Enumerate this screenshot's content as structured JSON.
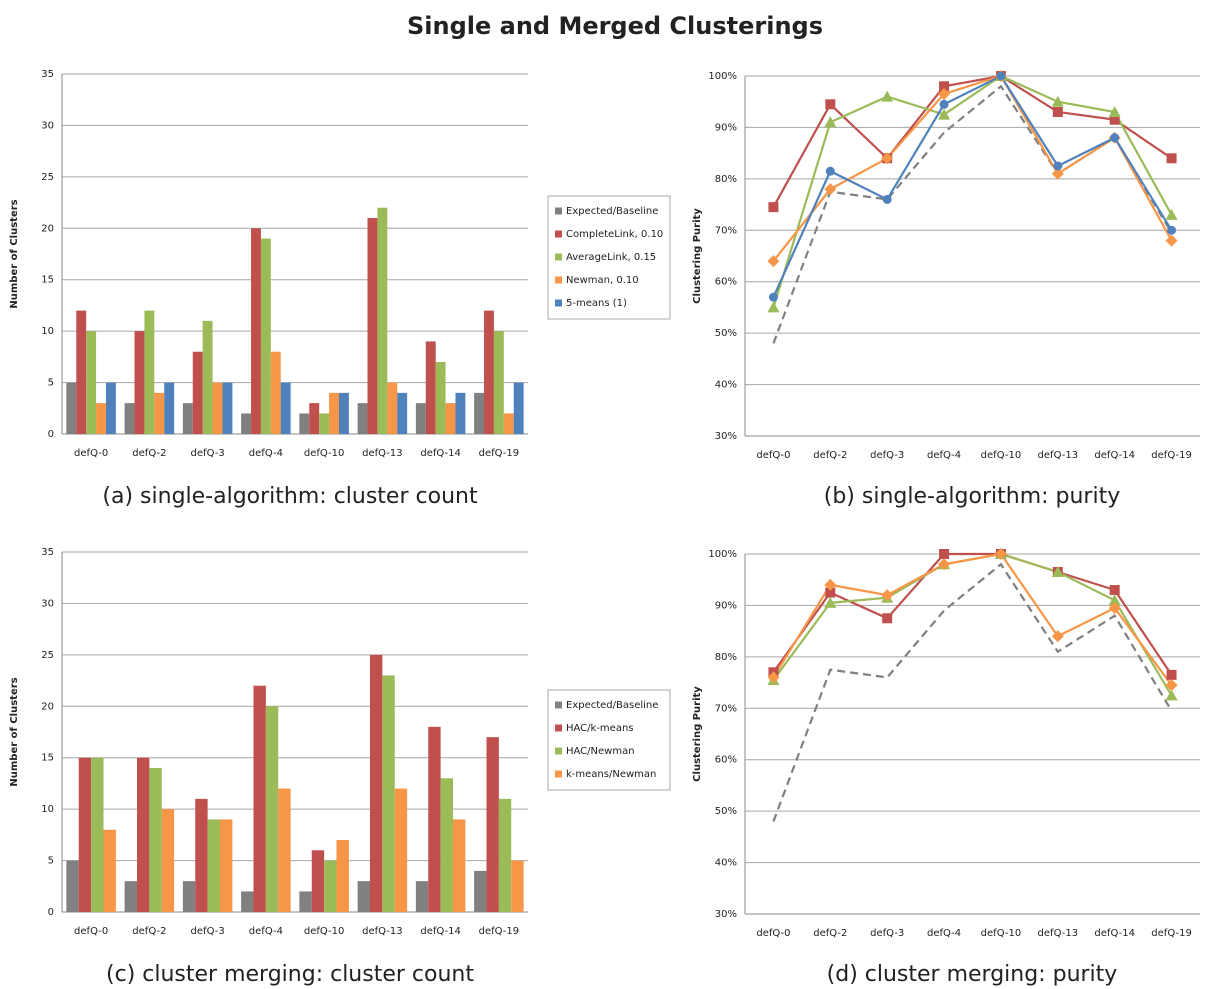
{
  "title": "Single and Merged Clusterings",
  "chart_data": [
    {
      "type": "bar",
      "caption": "(a) single-algorithm: cluster count",
      "ylabel": "Number of Clusters",
      "categories": [
        "defQ-0",
        "defQ-2",
        "defQ-3",
        "defQ-4",
        "defQ-10",
        "defQ-13",
        "defQ-14",
        "defQ-19"
      ],
      "series": [
        {
          "name": "Expected/Baseline",
          "color": "#808080",
          "values": [
            5,
            3,
            3,
            2,
            2,
            3,
            3,
            4
          ]
        },
        {
          "name": "CompleteLink, 0.10",
          "color": "#c0504d",
          "values": [
            12,
            10,
            8,
            20,
            3,
            21,
            9,
            12
          ]
        },
        {
          "name": "AverageLink, 0.15",
          "color": "#9bbb59",
          "values": [
            10,
            12,
            11,
            19,
            2,
            22,
            7,
            10
          ]
        },
        {
          "name": "Newman, 0.10",
          "color": "#f79646",
          "values": [
            3,
            4,
            5,
            8,
            4,
            5,
            3,
            2
          ]
        },
        {
          "name": "5-means (1)",
          "color": "#4f81bd",
          "values": [
            5,
            5,
            5,
            5,
            4,
            4,
            4,
            5
          ]
        }
      ],
      "ylim": [
        0,
        35
      ],
      "yticks": [
        0,
        5,
        10,
        15,
        20,
        25,
        30,
        35
      ],
      "grid": true,
      "legend": "right"
    },
    {
      "type": "line",
      "caption": "(b) single-algorithm: purity",
      "ylabel": "Clustering Purity",
      "categories": [
        "defQ-0",
        "defQ-2",
        "defQ-3",
        "defQ-4",
        "defQ-10",
        "defQ-13",
        "defQ-14",
        "defQ-19"
      ],
      "series": [
        {
          "color": "#808080",
          "dash": true,
          "values": [
            48,
            77.5,
            76,
            89,
            98,
            81,
            88,
            69.5
          ]
        },
        {
          "color": "#c0504d",
          "marker": "square",
          "values": [
            74.5,
            94.5,
            84,
            98,
            100,
            93,
            91.5,
            84
          ]
        },
        {
          "color": "#9bbb59",
          "marker": "triangle",
          "values": [
            55,
            91,
            96,
            92.5,
            100,
            95,
            93,
            73
          ]
        },
        {
          "color": "#f79646",
          "marker": "diamond",
          "values": [
            64,
            78,
            84,
            96.5,
            100,
            81,
            88,
            68
          ]
        },
        {
          "color": "#4f81bd",
          "marker": "circle",
          "values": [
            57,
            81.5,
            76,
            94.5,
            100,
            82.5,
            88,
            70
          ]
        }
      ],
      "ylim": [
        30,
        100
      ],
      "yticks": [
        {
          "value": 30,
          "label": "30%"
        },
        {
          "value": 40,
          "label": "40%"
        },
        {
          "value": 50,
          "label": "50%"
        },
        {
          "value": 60,
          "label": "60%"
        },
        {
          "value": 70,
          "label": "70%"
        },
        {
          "value": 80,
          "label": "80%"
        },
        {
          "value": 90,
          "label": "90%"
        },
        {
          "value": 100,
          "label": "100%"
        }
      ],
      "grid": true
    },
    {
      "type": "bar",
      "caption": "(c) cluster merging: cluster count",
      "ylabel": "Number of Clusters",
      "categories": [
        "defQ-0",
        "defQ-2",
        "defQ-3",
        "defQ-4",
        "defQ-10",
        "defQ-13",
        "defQ-14",
        "defQ-19"
      ],
      "series": [
        {
          "name": "Expected/Baseline",
          "color": "#808080",
          "values": [
            5,
            3,
            3,
            2,
            2,
            3,
            3,
            4
          ]
        },
        {
          "name": "HAC/k-means",
          "color": "#c0504d",
          "values": [
            15,
            15,
            11,
            22,
            6,
            25,
            18,
            17
          ]
        },
        {
          "name": "HAC/Newman",
          "color": "#9bbb59",
          "values": [
            15,
            14,
            9,
            20,
            5,
            23,
            13,
            11
          ]
        },
        {
          "name": "k-means/Newman",
          "color": "#f79646",
          "values": [
            8,
            10,
            9,
            12,
            7,
            12,
            9,
            5
          ]
        }
      ],
      "ylim": [
        0,
        35
      ],
      "yticks": [
        0,
        5,
        10,
        15,
        20,
        25,
        30,
        35
      ],
      "grid": true,
      "legend": "right"
    },
    {
      "type": "line",
      "caption": "(d) cluster merging: purity",
      "ylabel": "Clustering Purity",
      "categories": [
        "defQ-0",
        "defQ-2",
        "defQ-3",
        "defQ-4",
        "defQ-10",
        "defQ-13",
        "defQ-14",
        "defQ-19"
      ],
      "series": [
        {
          "color": "#808080",
          "dash": true,
          "values": [
            48,
            77.5,
            76,
            89,
            98,
            81,
            88,
            69.5
          ]
        },
        {
          "color": "#c0504d",
          "marker": "square",
          "values": [
            77,
            92.5,
            87.5,
            100,
            100,
            96.5,
            93,
            76.5
          ]
        },
        {
          "color": "#9bbb59",
          "marker": "triangle",
          "values": [
            75.5,
            90.5,
            91.5,
            98,
            100,
            96.5,
            91,
            72.5
          ]
        },
        {
          "color": "#f79646",
          "marker": "diamond",
          "values": [
            76,
            94,
            92,
            98,
            100,
            84,
            89.5,
            74.5
          ]
        }
      ],
      "ylim": [
        30,
        100
      ],
      "yticks": [
        {
          "value": 30,
          "label": "30%"
        },
        {
          "value": 40,
          "label": "40%"
        },
        {
          "value": 50,
          "label": "50%"
        },
        {
          "value": 60,
          "label": "60%"
        },
        {
          "value": 70,
          "label": "70%"
        },
        {
          "value": 80,
          "label": "80%"
        },
        {
          "value": 90,
          "label": "90%"
        },
        {
          "value": 100,
          "label": "100%"
        }
      ],
      "grid": true
    }
  ]
}
